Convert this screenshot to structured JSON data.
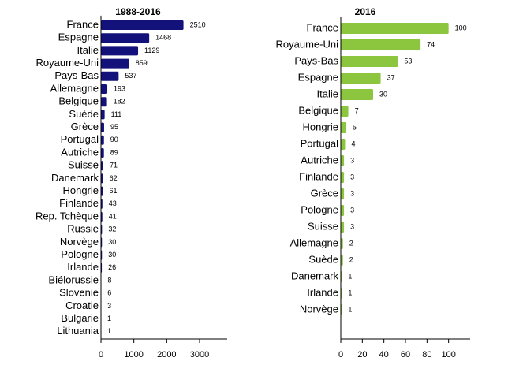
{
  "chart_data": [
    {
      "type": "bar",
      "orientation": "horizontal",
      "title": "1988-2016",
      "categories": [
        "France",
        "Espagne",
        "Italie",
        "Royaume-Uni",
        "Pays-Bas",
        "Allemagne",
        "Belgique",
        "Suède",
        "Grèce",
        "Portugal",
        "Autriche",
        "Suisse",
        "Danemark",
        "Hongrie",
        "Finlande",
        "Rep. Tchèque",
        "Russie",
        "Norvège",
        "Pologne",
        "Irlande",
        "Biélorussie",
        "Slovenie",
        "Croatie",
        "Bulgarie",
        "Lithuania"
      ],
      "values": [
        2510,
        1468,
        1129,
        859,
        537,
        193,
        182,
        111,
        95,
        90,
        89,
        71,
        62,
        61,
        43,
        41,
        32,
        30,
        30,
        26,
        8,
        6,
        3,
        1,
        1
      ],
      "color": "#12127a",
      "xlim": [
        0,
        3840
      ],
      "xticks": [
        0,
        1000,
        2000,
        3000
      ]
    },
    {
      "type": "bar",
      "orientation": "horizontal",
      "title": "2016",
      "categories": [
        "France",
        "Royaume-Uni",
        "Pays-Bas",
        "Espagne",
        "Italie",
        "Belgique",
        "Hongrie",
        "Portugal",
        "Autriche",
        "Finlande",
        "Grèce",
        "Pologne",
        "Suisse",
        "Allemagne",
        "Suède",
        "Danemark",
        "Irlande",
        "Norvège"
      ],
      "values": [
        100,
        74,
        53,
        37,
        30,
        7,
        5,
        4,
        3,
        3,
        3,
        3,
        3,
        2,
        2,
        1,
        1,
        1
      ],
      "color": "#8cc63e",
      "xlim": [
        0,
        120
      ],
      "xticks": [
        0,
        20,
        40,
        60,
        80,
        100
      ]
    }
  ]
}
